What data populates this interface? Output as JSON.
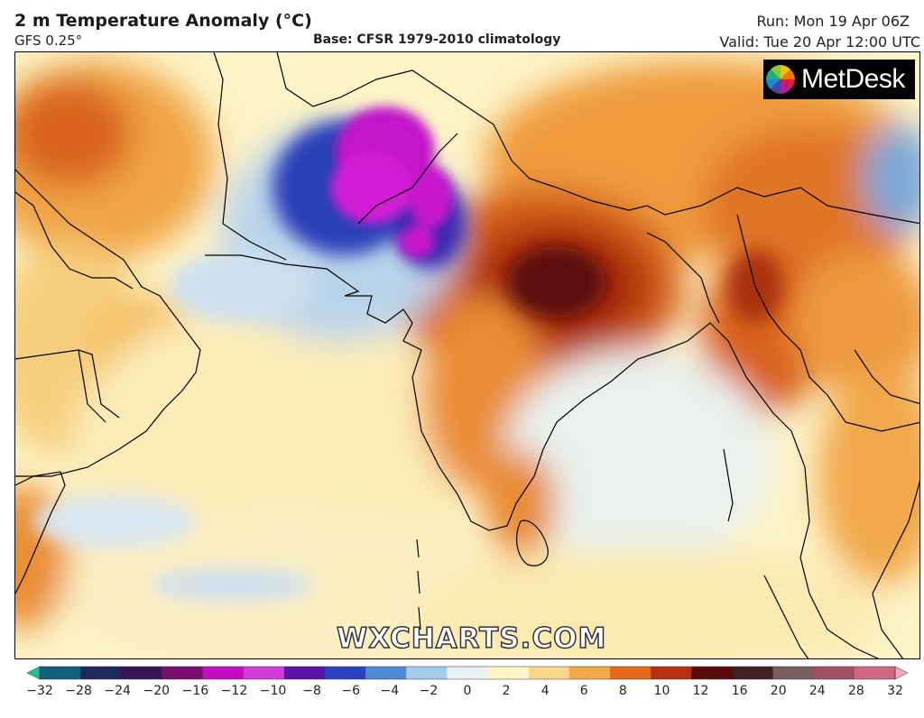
{
  "header": {
    "title": "2 m Temperature Anomaly (°C)",
    "model": "GFS 0.25°",
    "base": "Base: CFSR 1979-2010 climatology",
    "run": "Run: Mon 19 Apr 06Z",
    "valid": "Valid: Tue 20 Apr 12:00 UTC"
  },
  "logo": {
    "text": "MetDesk",
    "icon": "pinwheel-logo-icon"
  },
  "watermark": "WXCHARTS.COM",
  "legend": {
    "ticks": [
      "−32",
      "−28",
      "−24",
      "−20",
      "−16",
      "−12",
      "−10",
      "−8",
      "−6",
      "−4",
      "−2",
      "0",
      "2",
      "4",
      "6",
      "8",
      "10",
      "12",
      "16",
      "20",
      "24",
      "28",
      "32"
    ],
    "colors": [
      "#1fbf8f",
      "#13607a",
      "#1d2a5c",
      "#3a1456",
      "#7a0f6e",
      "#c40cc4",
      "#d13bd8",
      "#5a14a8",
      "#2c42c0",
      "#4f8ad6",
      "#a8cbe8",
      "#e8f1f4",
      "#fff6c8",
      "#f8d98a",
      "#f2a948",
      "#e46a1a",
      "#b8300d",
      "#5a0c0a",
      "#402020",
      "#7a5e5e",
      "#a05060",
      "#d06880",
      "#f2a8c0"
    ]
  }
}
